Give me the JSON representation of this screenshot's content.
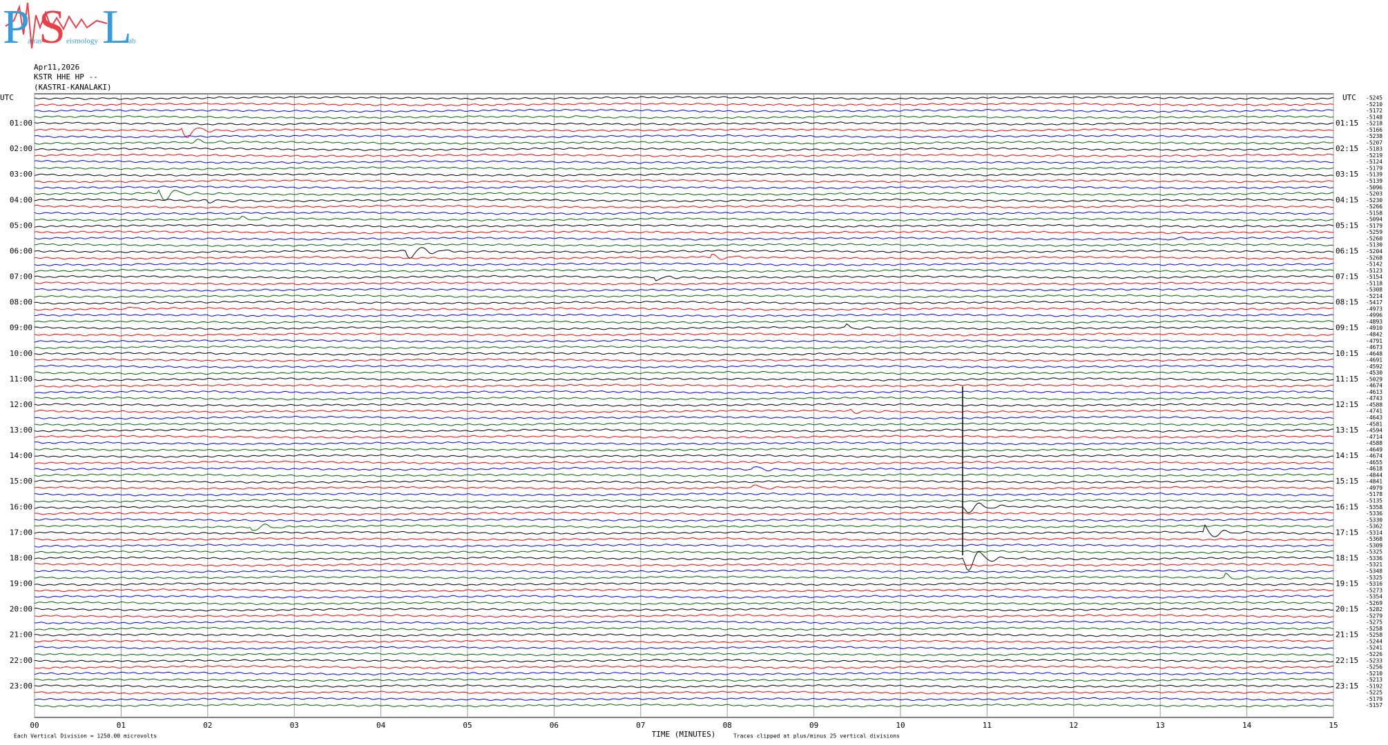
{
  "logo": {
    "letters": [
      "P",
      "S",
      "L"
    ],
    "words": [
      "atras",
      "eismology",
      "ab"
    ]
  },
  "header": {
    "date": "Apr11,2026",
    "channel": "KSTR HHE HP --",
    "station": "(KASTRI-KANALAKI)"
  },
  "left_axis": {
    "title": "UTC",
    "labels": [
      "01:00",
      "02:00",
      "03:00",
      "04:00",
      "05:00",
      "06:00",
      "07:00",
      "08:00",
      "09:00",
      "10:00",
      "11:00",
      "12:00",
      "13:00",
      "14:00",
      "15:00",
      "16:00",
      "17:00",
      "18:00",
      "19:00",
      "20:00",
      "21:00",
      "22:00",
      "23:00"
    ]
  },
  "right_axis": {
    "title": "UTC",
    "labels": [
      "01:15",
      "02:15",
      "03:15",
      "04:15",
      "05:15",
      "06:15",
      "07:15",
      "08:15",
      "09:15",
      "10:15",
      "11:15",
      "12:15",
      "13:15",
      "14:15",
      "15:15",
      "16:15",
      "17:15",
      "18:15",
      "19:15",
      "20:15",
      "21:15",
      "22:15",
      "23:15"
    ]
  },
  "trace_offsets": [
    -5245,
    -5210,
    -5172,
    -5148,
    -5218,
    -5166,
    -5238,
    -5207,
    -5183,
    -5219,
    -5124,
    -5179,
    -5139,
    -5139,
    -5096,
    -5203,
    -5230,
    -5266,
    -5158,
    -5094,
    -5179,
    -5259,
    -5260,
    -5130,
    -5204,
    -5268,
    -5142,
    -5123,
    -5154,
    -5118,
    -5308,
    -5214,
    -5417,
    -4973,
    -4996,
    -4893,
    -4910,
    -4842,
    -4791,
    -4673,
    -4648,
    -4691,
    -4592,
    -4530,
    -5029,
    -4674,
    -4613,
    -4743,
    -4588,
    -4741,
    -4643,
    -4581,
    -4594,
    -4714,
    -4588,
    -4649,
    -4674,
    -4655,
    -4618,
    -4844,
    -4841,
    -4979,
    -5178,
    -5135,
    -5358,
    -5336,
    -5330,
    -5362,
    -5314,
    -5368,
    -5309,
    -5325,
    -5336,
    -5321,
    -5348,
    -5325,
    -5316,
    -5273,
    -5354,
    -5269,
    -5282,
    -5279,
    -5275,
    -5258,
    -5258,
    -5244,
    -5241,
    -5226,
    -5233,
    -5256,
    -5210,
    -5213,
    -5192,
    -5225,
    -5179,
    -5157
  ],
  "trace_colors": [
    "#000000",
    "#ff0000",
    "#0000ff",
    "#006400"
  ],
  "time_axis": {
    "ticks": [
      "00",
      "01",
      "02",
      "03",
      "04",
      "05",
      "06",
      "07",
      "08",
      "09",
      "10",
      "11",
      "12",
      "13",
      "14",
      "15"
    ],
    "title": "TIME (MINUTES)"
  },
  "footer": {
    "scale": "Each Vertical Division = 1250.00 microvolts",
    "clip": "Traces clipped at plus/minus 25 vertical divisions"
  }
}
